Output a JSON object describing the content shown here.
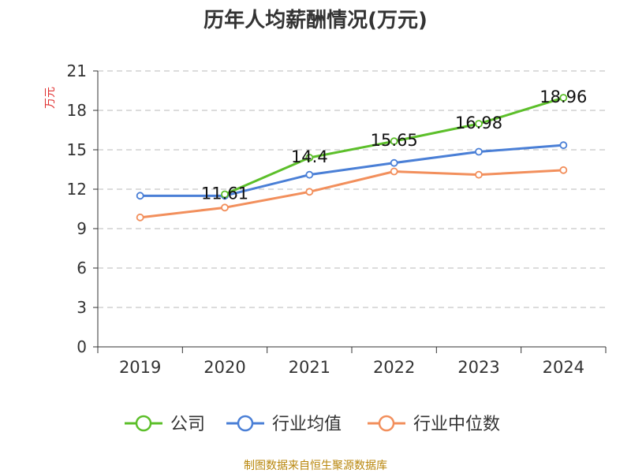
{
  "chart_data": {
    "type": "line",
    "title": "历年人均薪酬情况(万元)",
    "ylabel": "万元",
    "xlabel": "",
    "ylim": [
      0,
      21
    ],
    "yticks": [
      0,
      3,
      6,
      9,
      12,
      15,
      18,
      21
    ],
    "grid": true,
    "legend_position": "bottom",
    "categories": [
      "2019",
      "2020",
      "2021",
      "2022",
      "2023",
      "2024"
    ],
    "series": [
      {
        "name": "公司",
        "color": "#5cbf2a",
        "values": [
          null,
          11.61,
          14.4,
          15.65,
          16.98,
          18.96
        ],
        "labels": [
          "",
          "11.61",
          "14.4",
          "15.65",
          "16.98",
          "18.96"
        ]
      },
      {
        "name": "行业均值",
        "color": "#4a7fd6",
        "values": [
          11.5,
          11.5,
          13.1,
          14.0,
          14.85,
          15.35
        ],
        "labels": []
      },
      {
        "name": "行业中位数",
        "color": "#f28f5c",
        "values": [
          9.85,
          10.6,
          11.8,
          13.35,
          13.1,
          13.45
        ],
        "labels": []
      }
    ]
  },
  "source": "制图数据来自恒生聚源数据库"
}
